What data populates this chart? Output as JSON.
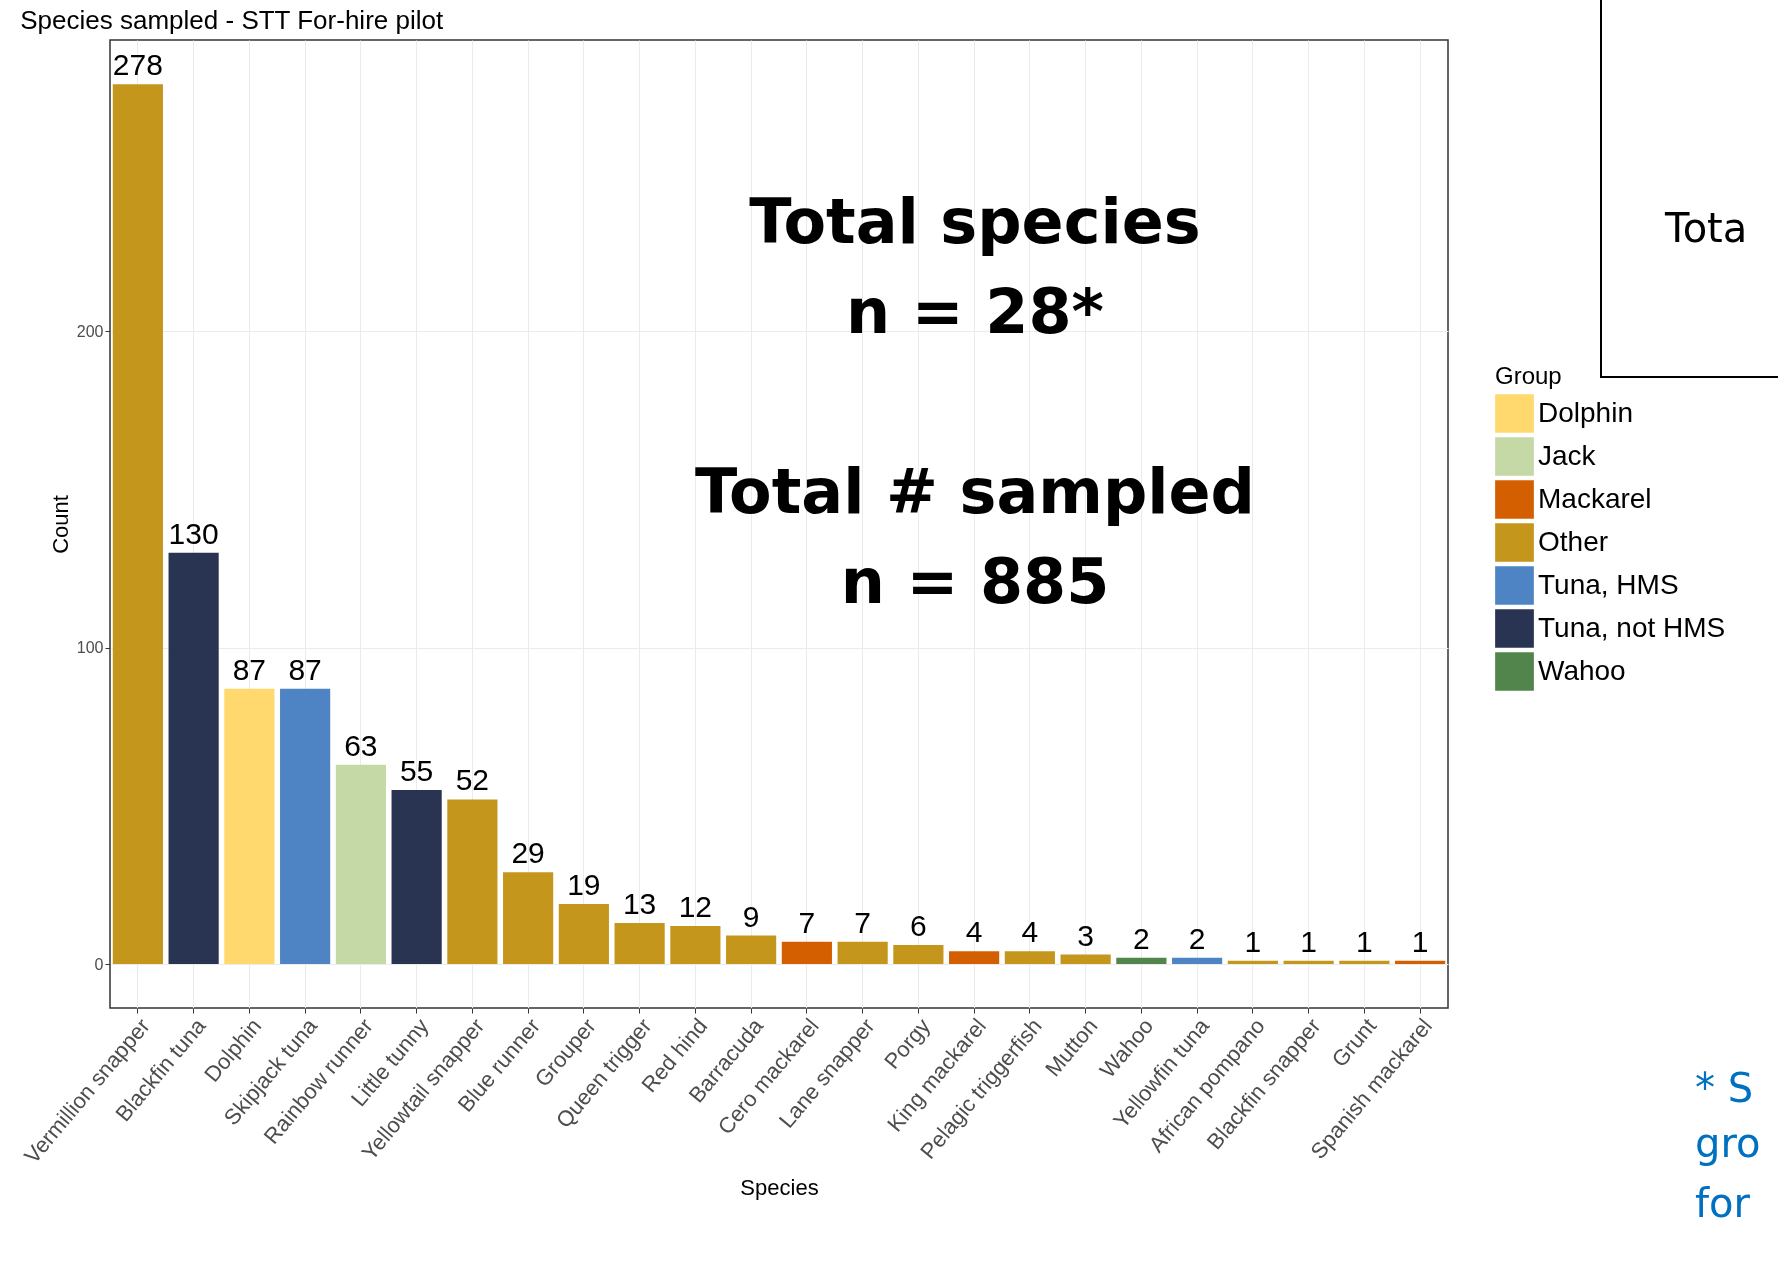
{
  "chart_data": {
    "type": "bar",
    "title": "Species sampled - STT For-hire pilot",
    "xlabel": "Species",
    "ylabel": "Count",
    "legend_title": "Group",
    "categories": [
      "Vermillion snapper",
      "Blackfin tuna",
      "Dolphin",
      "Skipjack tuna",
      "Rainbow runner",
      "Little tunny",
      "Yellowtail snapper",
      "Blue runner",
      "Grouper",
      "Queen trigger",
      "Red hind",
      "Barracuda",
      "Cero mackarel",
      "Lane snapper",
      "Porgy",
      "King mackarel",
      "Pelagic triggerfish",
      "Mutton",
      "Wahoo",
      "Yellowfin tuna",
      "African pompano",
      "Blackfin snapper",
      "Grunt",
      "Spanish mackarel"
    ],
    "series": [
      {
        "name": "Dolphin",
        "color": "#ffd96e",
        "values": [
          null,
          null,
          87,
          null,
          null,
          null,
          null,
          null,
          null,
          null,
          null,
          null,
          null,
          null,
          null,
          null,
          null,
          null,
          null,
          null,
          null,
          null,
          null,
          null
        ]
      },
      {
        "name": "Jack",
        "color": "#c5d9a6",
        "values": [
          null,
          null,
          null,
          null,
          63,
          null,
          null,
          null,
          null,
          null,
          null,
          null,
          null,
          null,
          null,
          null,
          null,
          null,
          null,
          null,
          null,
          null,
          null,
          null
        ]
      },
      {
        "name": "Mackarel",
        "color": "#d35f00",
        "values": [
          null,
          null,
          null,
          null,
          null,
          null,
          null,
          null,
          null,
          null,
          null,
          null,
          7,
          null,
          null,
          4,
          null,
          null,
          null,
          null,
          null,
          null,
          null,
          1
        ]
      },
      {
        "name": "Other",
        "color": "#c4961c",
        "values": [
          278,
          null,
          null,
          null,
          null,
          null,
          52,
          29,
          19,
          13,
          12,
          9,
          null,
          7,
          6,
          null,
          4,
          3,
          null,
          null,
          1,
          1,
          1,
          null
        ]
      },
      {
        "name": "Tuna, HMS",
        "color": "#4e84c4",
        "values": [
          null,
          null,
          null,
          87,
          null,
          null,
          null,
          null,
          null,
          null,
          null,
          null,
          null,
          null,
          null,
          null,
          null,
          null,
          null,
          2,
          null,
          null,
          null,
          null
        ]
      },
      {
        "name": "Tuna, not HMS",
        "color": "#293352",
        "values": [
          null,
          130,
          null,
          null,
          null,
          55,
          null,
          null,
          null,
          null,
          null,
          null,
          null,
          null,
          null,
          null,
          null,
          null,
          null,
          null,
          null,
          null,
          null,
          null
        ]
      },
      {
        "name": "Wahoo",
        "color": "#52854c",
        "values": [
          null,
          null,
          null,
          null,
          null,
          null,
          null,
          null,
          null,
          null,
          null,
          null,
          null,
          null,
          null,
          null,
          null,
          null,
          2,
          null,
          null,
          null,
          null,
          null
        ]
      }
    ],
    "ylim": [
      -13.9,
      292
    ],
    "yticks": [
      0,
      100,
      200
    ],
    "grid": true,
    "legend": "right",
    "data_labels": true,
    "annotations": [
      "Total species",
      "n = 28*",
      "Total # sampled",
      "n = 885",
      "Tota",
      "* S",
      "gro",
      "for"
    ]
  }
}
